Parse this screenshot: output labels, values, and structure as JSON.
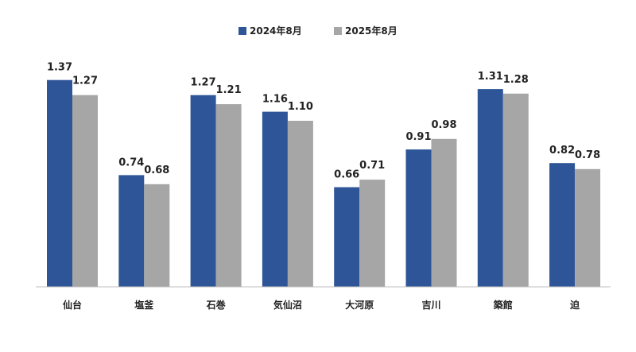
{
  "chart_data": {
    "type": "bar",
    "title": "",
    "xlabel": "",
    "ylabel": "",
    "ylim": [
      0,
      1.4
    ],
    "grid": false,
    "legend_position": "top-center",
    "categories": [
      "仙台",
      "塩釜",
      "石巻",
      "気仙沼",
      "大河原",
      "吉川",
      "築館",
      "迫"
    ],
    "series": [
      {
        "name": "2024年8月",
        "color": "#2e5597",
        "values": [
          1.37,
          0.74,
          1.27,
          1.16,
          0.66,
          0.91,
          1.31,
          0.82
        ],
        "labels": [
          "1.37",
          "0.74",
          "1.27",
          "1.16",
          "0.66",
          "0.91",
          "1.31",
          "0.82"
        ]
      },
      {
        "name": "2025年8月",
        "color": "#a6a6a6",
        "values": [
          1.27,
          0.68,
          1.21,
          1.1,
          0.71,
          0.98,
          1.28,
          0.78
        ],
        "labels": [
          "1.27",
          "0.68",
          "1.21",
          "1.10",
          "0.71",
          "0.98",
          "1.28",
          "0.78"
        ]
      }
    ]
  }
}
